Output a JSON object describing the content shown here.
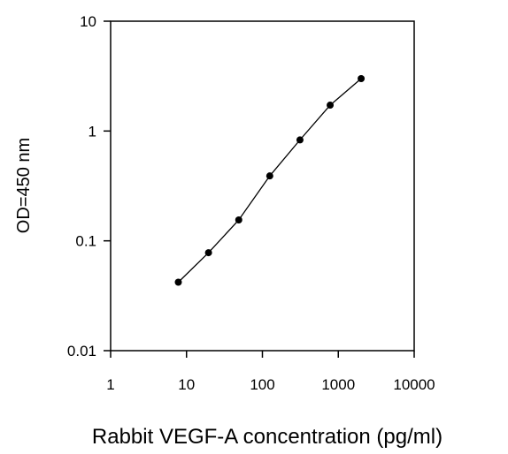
{
  "chart_data": {
    "type": "line",
    "title": "",
    "xlabel": "Rabbit VEGF-A concentration (pg/ml)",
    "ylabel": "OD=450 nm",
    "x_scale": "log",
    "y_scale": "log",
    "xlim": [
      1,
      10000
    ],
    "ylim": [
      0.01,
      10
    ],
    "x_ticks": [
      1,
      10,
      100,
      1000,
      10000
    ],
    "x_tick_labels": [
      "1",
      "10",
      "100",
      "1000",
      "10000"
    ],
    "y_ticks": [
      0.01,
      0.1,
      1,
      10
    ],
    "y_tick_labels": [
      "0.01",
      "0.1",
      "1",
      "10"
    ],
    "grid": false,
    "legend": "none",
    "series": [
      {
        "x": [
          7.8,
          19.5,
          48.8,
          125,
          312.5,
          781,
          2000
        ],
        "y": [
          0.042,
          0.078,
          0.155,
          0.39,
          0.83,
          1.72,
          3.0
        ],
        "color": "#000000",
        "marker": "circle"
      }
    ]
  }
}
